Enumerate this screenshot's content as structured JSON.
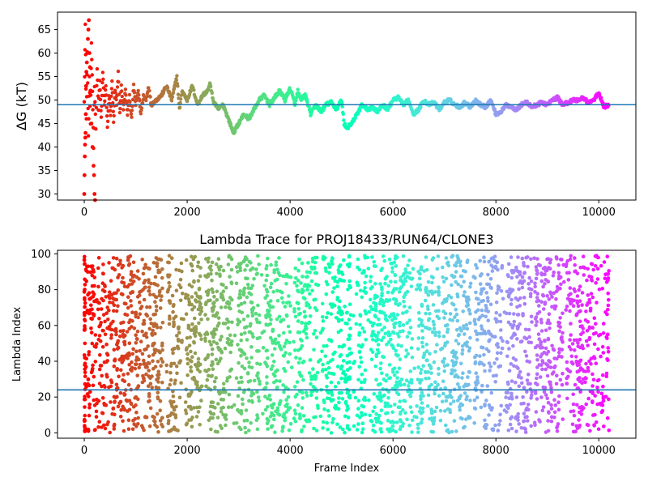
{
  "chart_data": [
    {
      "type": "scatter",
      "title": "",
      "xlabel": "",
      "ylabel": "ΔG (kT)",
      "xlim": [
        -520,
        10720
      ],
      "ylim": [
        28.7,
        68.7
      ],
      "xticks": [
        0,
        2000,
        4000,
        6000,
        8000,
        10000
      ],
      "yticks": [
        30,
        35,
        40,
        45,
        50,
        55,
        60,
        65
      ],
      "color_scale": "rainbow, red at frame 0 to violet at frame 10200",
      "reference_line": {
        "y": 49.0,
        "color": "#1f77b4"
      },
      "x_max": 10200,
      "trace": {
        "x": [
          0,
          20,
          40,
          60,
          80,
          100,
          120,
          140,
          160,
          180,
          200,
          225,
          250,
          275,
          300,
          330,
          360,
          390,
          420,
          450,
          480,
          510,
          540,
          570,
          600,
          630,
          660,
          690,
          720,
          760,
          800,
          840,
          880,
          920,
          960,
          1000,
          1050,
          1100,
          1150,
          1200,
          1250,
          1300,
          1400,
          1500,
          1600,
          1700,
          1800,
          1850,
          1900,
          2000,
          2100,
          2200,
          2300,
          2400,
          2450,
          2500,
          2600,
          2700,
          2800,
          2900,
          3000,
          3100,
          3200,
          3300,
          3400,
          3500,
          3600,
          3700,
          3800,
          3900,
          4000,
          4100,
          4150,
          4200,
          4300,
          4400,
          4500,
          4600,
          4700,
          4800,
          4900,
          5000,
          5050,
          5100,
          5200,
          5300,
          5400,
          5500,
          5600,
          5700,
          5800,
          5900,
          6000,
          6100,
          6200,
          6300,
          6400,
          6500,
          6600,
          6700,
          6800,
          6900,
          7000,
          7100,
          7200,
          7300,
          7400,
          7500,
          7600,
          7700,
          7800,
          7900,
          8000,
          8100,
          8200,
          8300,
          8400,
          8500,
          8600,
          8700,
          8800,
          8900,
          9000,
          9100,
          9200,
          9300,
          9400,
          9500,
          9600,
          9700,
          9800,
          9900,
          10000,
          10100,
          10200
        ],
        "y": [
          50,
          66,
          46,
          60,
          42,
          55,
          45,
          62,
          52,
          40,
          53,
          44,
          57,
          48,
          54,
          46,
          56,
          49,
          53,
          44,
          51,
          47,
          54,
          45,
          52,
          49,
          56,
          47,
          53,
          48,
          52,
          47,
          51,
          46,
          53,
          49,
          52,
          47,
          51,
          50,
          53,
          49,
          50,
          51,
          53,
          50,
          55,
          48,
          52,
          50,
          53,
          49,
          51,
          52,
          53.5,
          50,
          48,
          49,
          46,
          43,
          45,
          47,
          46,
          48,
          50,
          51,
          49,
          50.5,
          52,
          50,
          52.5,
          49,
          52,
          50,
          51,
          47,
          49,
          47.5,
          49,
          49.5,
          48,
          50,
          45,
          44,
          45,
          47,
          49,
          48,
          48.5,
          47.5,
          49,
          48,
          50,
          50.5,
          49,
          50,
          47,
          48,
          50,
          49,
          49.5,
          48,
          49.5,
          50,
          49,
          48.5,
          49.5,
          48.5,
          50,
          49,
          48.5,
          50,
          47,
          47.5,
          49,
          48.5,
          48,
          49,
          49.5,
          48.5,
          49,
          49.5,
          49,
          50,
          50.5,
          49,
          49.5,
          50,
          50,
          50.5,
          49.5,
          50,
          51.5,
          48.5,
          49
        ]
      },
      "early_outliers": {
        "x": [
          0,
          5,
          10,
          15,
          20,
          25,
          30,
          35,
          40,
          50,
          60,
          70,
          80,
          90,
          100,
          110,
          120,
          140,
          160,
          180,
          190,
          200,
          210
        ],
        "y": [
          30,
          34,
          38,
          40.5,
          42,
          43,
          47,
          53,
          56,
          58,
          60,
          63,
          65,
          67,
          60,
          57,
          52,
          45,
          40,
          36,
          34,
          30,
          28.7
        ]
      }
    },
    {
      "type": "scatter",
      "title": "Lambda Trace for PROJ18433/RUN64/CLONE3",
      "xlabel": "Frame Index",
      "ylabel": "Lambda Index",
      "xlim": [
        -520,
        10720
      ],
      "ylim": [
        -3,
        102
      ],
      "xticks": [
        0,
        2000,
        4000,
        6000,
        8000,
        10000
      ],
      "yticks": [
        0,
        20,
        40,
        60,
        80,
        100
      ],
      "color_scale": "rainbow, red at frame 0 to violet at frame 10200",
      "reference_line": {
        "y": 24.0,
        "color": "#1f77b4"
      },
      "x_max": 10200,
      "point_count": 3200,
      "value_range": [
        0,
        99
      ],
      "sparse_frame_gaps": [
        [
          1520,
          1620
        ],
        [
          1900,
          1970
        ],
        [
          2280,
          2350
        ],
        [
          2880,
          2960
        ],
        [
          3420,
          3500
        ],
        [
          4020,
          4080
        ],
        [
          4550,
          4620
        ],
        [
          5180,
          5300
        ],
        [
          5480,
          5560
        ],
        [
          6380,
          6450
        ],
        [
          6900,
          6960
        ],
        [
          7500,
          7580
        ],
        [
          8140,
          8200
        ],
        [
          8700,
          8760
        ],
        [
          9300,
          9360
        ]
      ]
    }
  ]
}
